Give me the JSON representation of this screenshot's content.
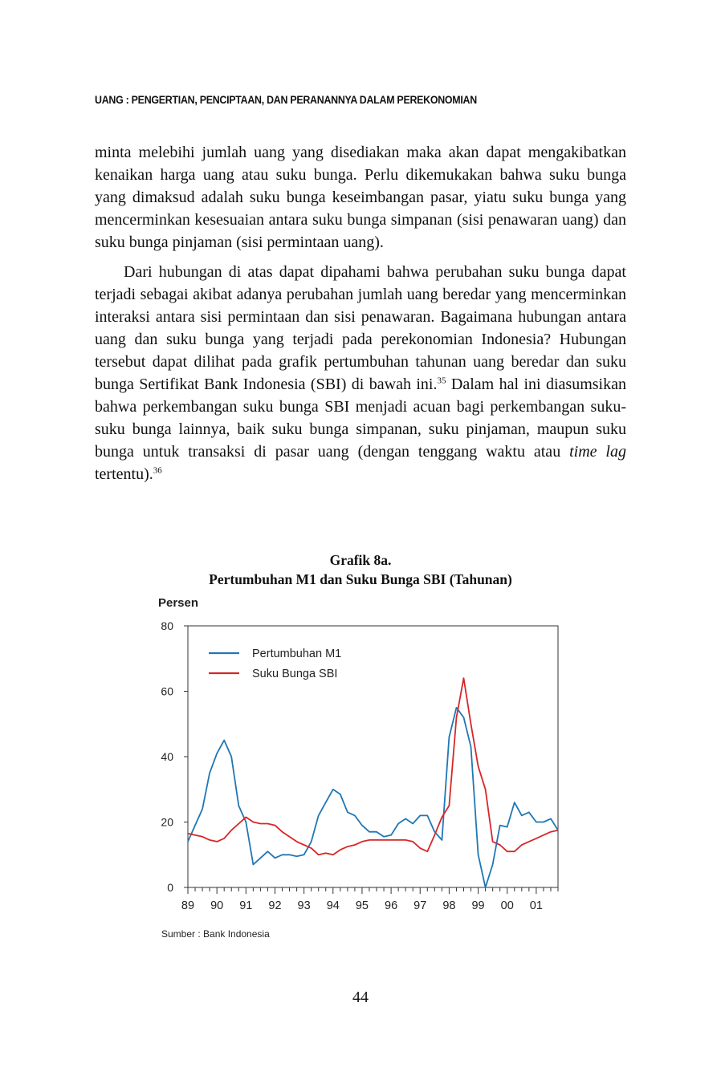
{
  "running_head": "UANG : PENGERTIAN, PENCIPTAAN, DAN PERANANNYA DALAM PEREKONOMIAN",
  "paragraph1": "minta melebihi jumlah uang yang disediakan maka akan dapat mengakibatkan kenaikan harga uang atau suku bunga. Perlu dikemukakan bahwa suku bunga yang dimaksud adalah suku bunga keseimbangan pasar, yiatu suku bunga yang mencerminkan kesesuaian antara suku bunga simpanan (sisi penawaran uang) dan suku bunga pinjaman (sisi permintaan uang).",
  "paragraph2": {
    "part1": "Dari hubungan di atas dapat dipahami bahwa perubahan suku bunga dapat terjadi sebagai akibat adanya perubahan jumlah uang beredar yang mencerminkan interaksi antara sisi permintaan dan sisi penawaran. Bagaimana hubungan antara uang dan suku bunga yang terjadi pada perekonomian Indonesia? Hubungan tersebut dapat dilihat pada grafik pertumbuhan tahunan uang beredar dan suku bunga Sertifikat Bank Indonesia (SBI) di bawah ini.",
    "footnote1": "35",
    "part2": " Dalam hal ini diasumsikan bahwa perkembangan suku bunga SBI menjadi acuan bagi perkembangan suku-suku bunga lainnya, baik suku bunga simpanan, suku pinjaman, maupun suku bunga untuk transaksi di pasar uang (dengan tenggang waktu atau ",
    "italic": "time lag",
    "part3": " tertentu).",
    "footnote2": "36"
  },
  "figure": {
    "label": "Grafik 8a.",
    "title": "Pertumbuhan M1 dan Suku Bunga SBI (Tahunan)",
    "source": "Sumber : Bank Indonesia"
  },
  "page_number": "44",
  "chart_data": {
    "type": "line",
    "ylabel": "Persen",
    "ylim": [
      0,
      80
    ],
    "yticks": [
      0,
      20,
      40,
      60,
      80
    ],
    "xlim": [
      1989,
      2001.75
    ],
    "xtick_labels": [
      "89",
      "90",
      "91",
      "92",
      "93",
      "94",
      "95",
      "96",
      "97",
      "98",
      "99",
      "00",
      "01"
    ],
    "grid": false,
    "legend_position": "top-left",
    "series": [
      {
        "name": "Pertumbuhan M1",
        "color": "#1f77b4",
        "x": [
          1989.0,
          1989.25,
          1989.5,
          1989.75,
          1990.0,
          1990.25,
          1990.5,
          1990.75,
          1991.0,
          1991.25,
          1991.5,
          1991.75,
          1992.0,
          1992.25,
          1992.5,
          1992.75,
          1993.0,
          1993.25,
          1993.5,
          1993.75,
          1994.0,
          1994.25,
          1994.5,
          1994.75,
          1995.0,
          1995.25,
          1995.5,
          1995.75,
          1996.0,
          1996.25,
          1996.5,
          1996.75,
          1997.0,
          1997.25,
          1997.5,
          1997.75,
          1998.0,
          1998.25,
          1998.5,
          1998.75,
          1999.0,
          1999.25,
          1999.5,
          1999.75,
          2000.0,
          2000.25,
          2000.5,
          2000.75,
          2001.0,
          2001.25,
          2001.5,
          2001.75
        ],
        "values": [
          14,
          19,
          24,
          35,
          41,
          45,
          40,
          25,
          20,
          7,
          9,
          11,
          9,
          10,
          10,
          9.5,
          10,
          14,
          22,
          26,
          30,
          28.5,
          23,
          22,
          19,
          17,
          17,
          15.5,
          16,
          19.5,
          21,
          19.5,
          22,
          22,
          17,
          14.5,
          46,
          55,
          52,
          43,
          10,
          0,
          7,
          19,
          18.5,
          26,
          22,
          23,
          20,
          20,
          21,
          17.5
        ]
      },
      {
        "name": "Suku Bunga SBI",
        "color": "#d62728",
        "x": [
          1989.0,
          1989.25,
          1989.5,
          1989.75,
          1990.0,
          1990.25,
          1990.5,
          1990.75,
          1991.0,
          1991.25,
          1991.5,
          1991.75,
          1992.0,
          1992.25,
          1992.5,
          1992.75,
          1993.0,
          1993.25,
          1993.5,
          1993.75,
          1994.0,
          1994.25,
          1994.5,
          1994.75,
          1995.0,
          1995.25,
          1995.5,
          1995.75,
          1996.0,
          1996.25,
          1996.5,
          1996.75,
          1997.0,
          1997.25,
          1997.5,
          1997.75,
          1998.0,
          1998.25,
          1998.5,
          1998.75,
          1999.0,
          1999.25,
          1999.5,
          1999.75,
          2000.0,
          2000.25,
          2000.5,
          2000.75,
          2001.0,
          2001.25,
          2001.5,
          2001.75
        ],
        "values": [
          16.5,
          16,
          15.5,
          14.5,
          14,
          15,
          17.5,
          19.5,
          21.5,
          20,
          19.5,
          19.5,
          19,
          17,
          15.5,
          14,
          13,
          12,
          10,
          10.5,
          10,
          11.5,
          12.5,
          13,
          14,
          14.5,
          14.5,
          14.5,
          14.5,
          14.5,
          14.5,
          14,
          12,
          11,
          16,
          21.5,
          25,
          52,
          64,
          50,
          37,
          30,
          14,
          13,
          11,
          11,
          13,
          14,
          15,
          16,
          17,
          17.5
        ]
      }
    ]
  }
}
